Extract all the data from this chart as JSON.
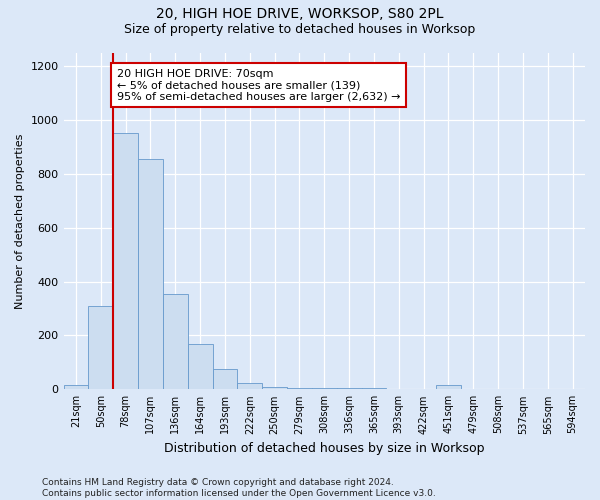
{
  "title_line1": "20, HIGH HOE DRIVE, WORKSOP, S80 2PL",
  "title_line2": "Size of property relative to detached houses in Worksop",
  "xlabel": "Distribution of detached houses by size in Worksop",
  "ylabel": "Number of detached properties",
  "footer": "Contains HM Land Registry data © Crown copyright and database right 2024.\nContains public sector information licensed under the Open Government Licence v3.0.",
  "annotation_line1": "20 HIGH HOE DRIVE: 70sqm",
  "annotation_line2": "← 5% of detached houses are smaller (139)",
  "annotation_line3": "95% of semi-detached houses are larger (2,632) →",
  "bin_labels": [
    "21sqm",
    "50sqm",
    "78sqm",
    "107sqm",
    "136sqm",
    "164sqm",
    "193sqm",
    "222sqm",
    "250sqm",
    "279sqm",
    "308sqm",
    "336sqm",
    "365sqm",
    "393sqm",
    "422sqm",
    "451sqm",
    "479sqm",
    "508sqm",
    "537sqm",
    "565sqm",
    "594sqm"
  ],
  "bar_heights": [
    15,
    310,
    950,
    855,
    355,
    170,
    75,
    25,
    8,
    5,
    5,
    5,
    5,
    0,
    0,
    15,
    0,
    0,
    0,
    0,
    0
  ],
  "bar_color": "#ccddf0",
  "bar_edge_color": "#6699cc",
  "background_color": "#dce8f8",
  "grid_color": "#ffffff",
  "red_line_color": "#cc0000",
  "annotation_box_facecolor": "#ffffff",
  "annotation_box_edgecolor": "#cc0000",
  "ylim": [
    0,
    1250
  ],
  "yticks": [
    0,
    200,
    400,
    600,
    800,
    1000,
    1200
  ],
  "red_line_bin_index": 1.5,
  "figwidth": 6.0,
  "figheight": 5.0,
  "dpi": 100
}
